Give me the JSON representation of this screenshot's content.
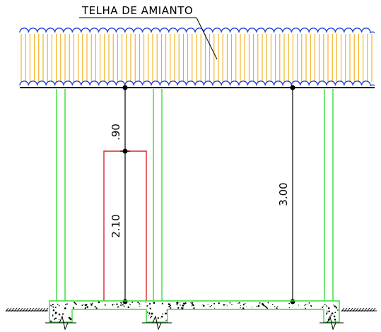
{
  "drawing": {
    "roof_label": "TELHA DE AMIANTO",
    "dimensions": {
      "top_clearance": ".90",
      "door_height": "2.10",
      "total_height": "3.00"
    },
    "colors": {
      "roof_wave": "#1f3fd6",
      "roof_fill_lines": "#f0a500",
      "columns": "#33dd33",
      "door": "#dd2222",
      "dimension_lines": "#000000"
    }
  }
}
